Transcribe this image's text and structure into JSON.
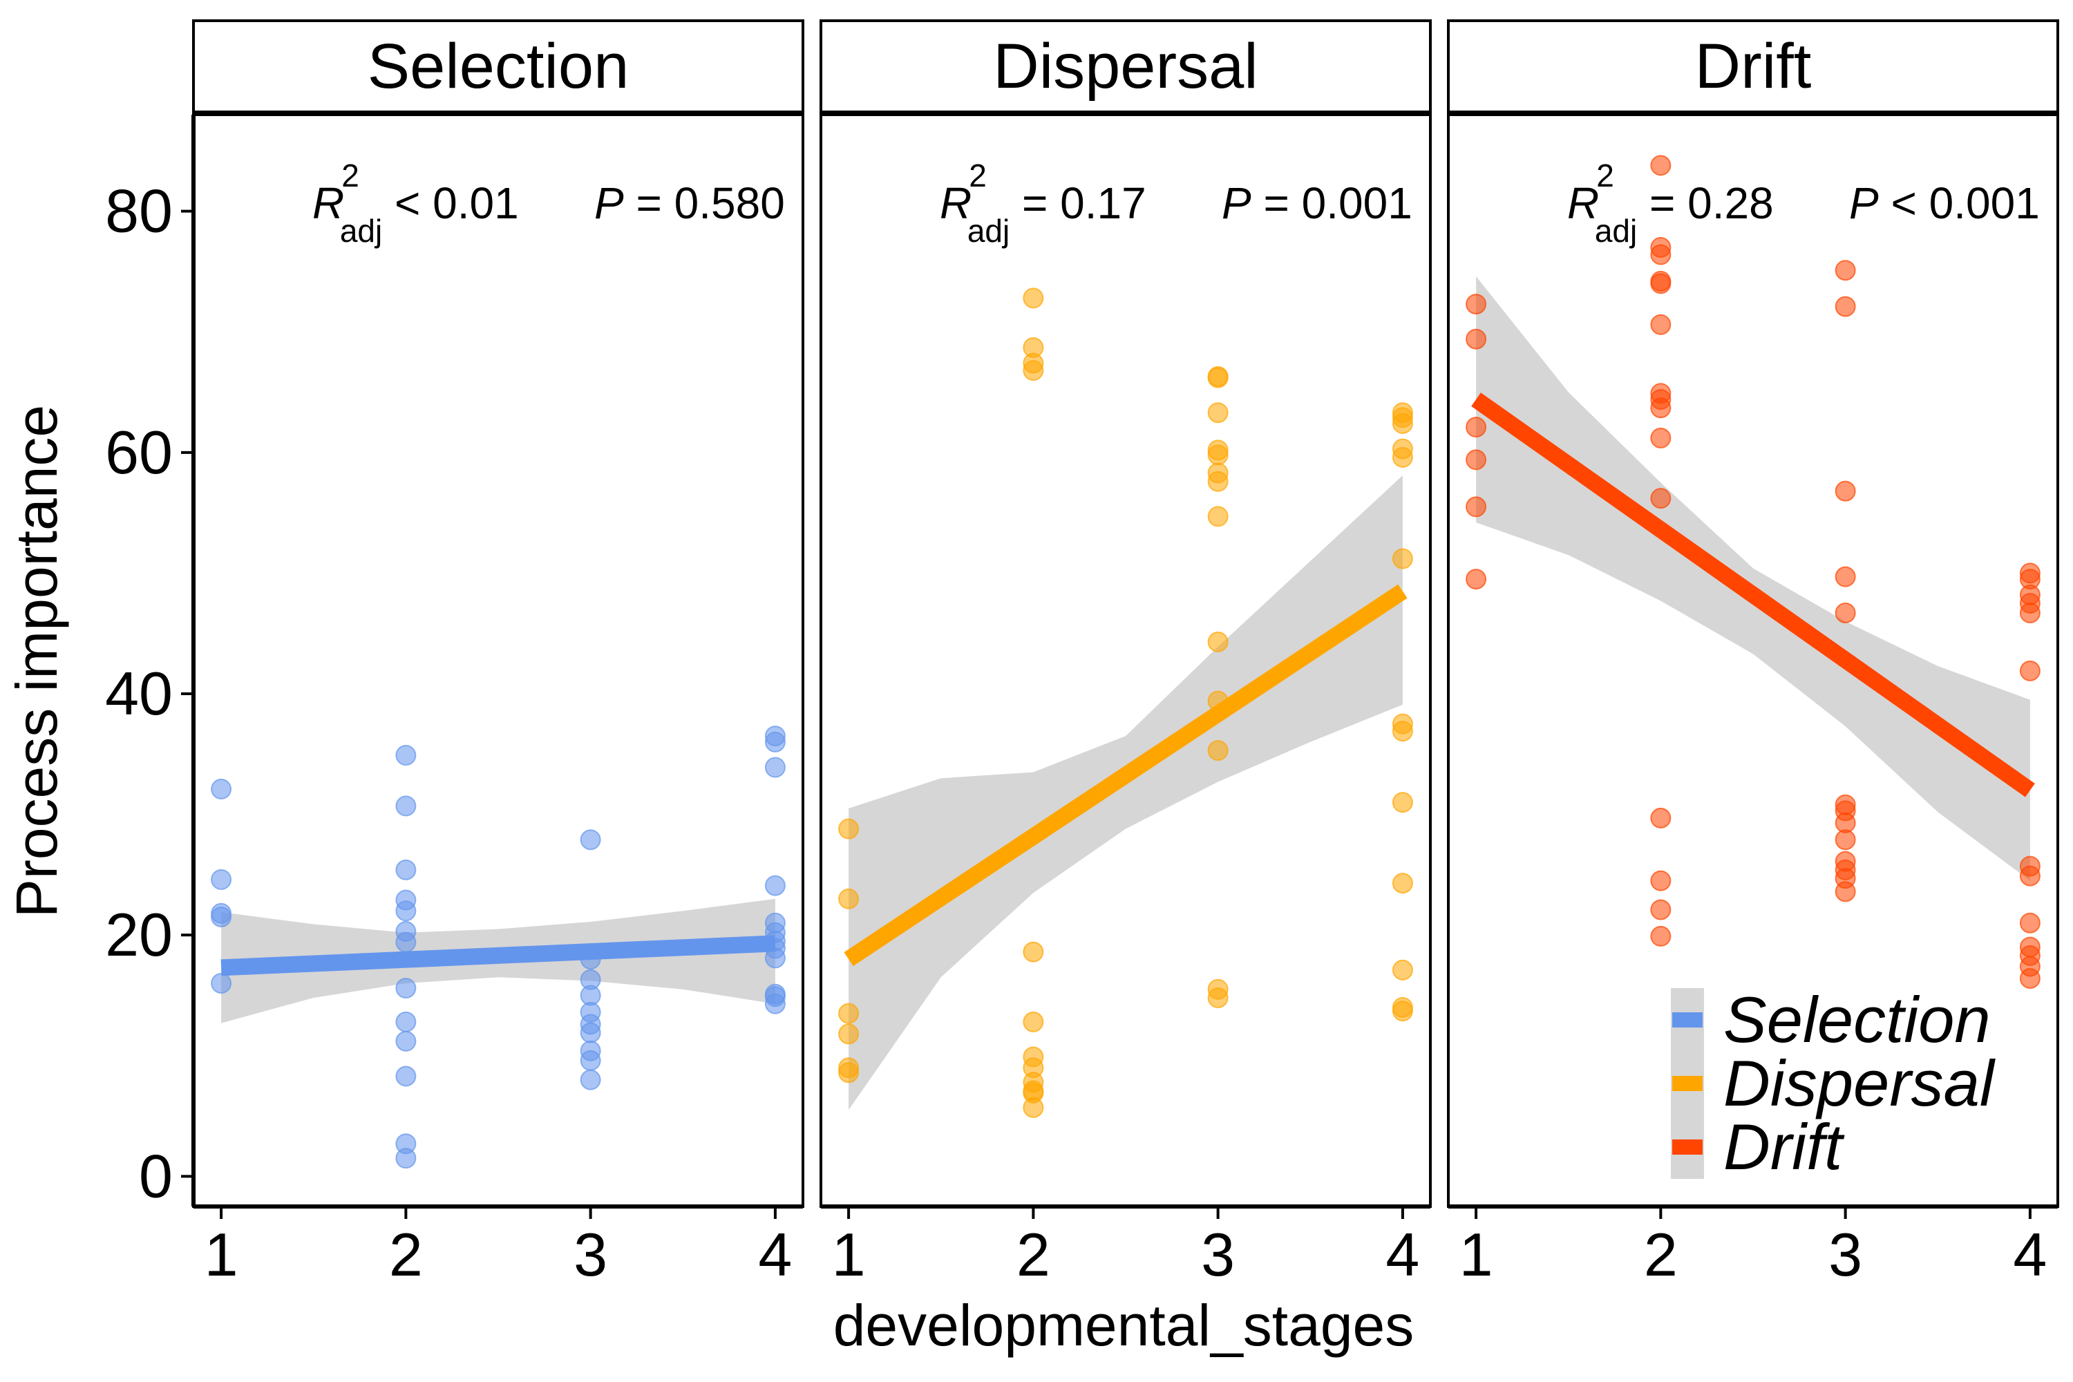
{
  "chart_data": {
    "type": "scatter",
    "y_axis_label": "Process importance",
    "x_axis_label": "developmental_stages",
    "ylim": [
      -2.5,
      88
    ],
    "xlim": [
      0.85,
      4.15
    ],
    "y_ticks": [
      0,
      20,
      40,
      60,
      80
    ],
    "x_ticks": [
      1,
      2,
      3,
      4
    ],
    "grid": false,
    "legend": {
      "placement": "bottom-right",
      "items": [
        {
          "label": "Selection",
          "color": "#6495ED"
        },
        {
          "label": "Dispersal",
          "color": "#FFA500"
        },
        {
          "label": "Drift",
          "color": "#FF4500"
        }
      ]
    },
    "panels": [
      {
        "title": "Selection",
        "color": "#6495ED",
        "stat_r_letter": "R",
        "stat_r_sub": "adj",
        "stat_r_sup": "2",
        "stat_r_value": " < 0.01",
        "stat_p_letter": "P",
        "stat_p_value": " = 0.580",
        "fit": {
          "x": [
            1,
            4
          ],
          "y": [
            17.3,
            19.3
          ]
        },
        "ci": {
          "x": [
            1,
            1.5,
            2,
            2.5,
            3,
            3.5,
            4
          ],
          "lower": [
            12.7,
            14.8,
            16.0,
            16.5,
            16.2,
            15.5,
            14.3
          ],
          "upper": [
            21.9,
            20.9,
            20.2,
            20.5,
            21.1,
            22.0,
            23.0
          ]
        },
        "points": [
          [
            1,
            32.1
          ],
          [
            1,
            24.6
          ],
          [
            1,
            21.8
          ],
          [
            1,
            21.5
          ],
          [
            1,
            16.0
          ],
          [
            2,
            34.9
          ],
          [
            2,
            30.7
          ],
          [
            2,
            25.4
          ],
          [
            2,
            22.9
          ],
          [
            2,
            22.0
          ],
          [
            2,
            20.3
          ],
          [
            2,
            19.4
          ],
          [
            2,
            15.6
          ],
          [
            2,
            12.8
          ],
          [
            2,
            11.2
          ],
          [
            2,
            8.3
          ],
          [
            2,
            2.7
          ],
          [
            2,
            1.5
          ],
          [
            3,
            27.9
          ],
          [
            3,
            18.0
          ],
          [
            3,
            16.3
          ],
          [
            3,
            15.0
          ],
          [
            3,
            13.6
          ],
          [
            3,
            12.6
          ],
          [
            3,
            11.9
          ],
          [
            3,
            10.4
          ],
          [
            3,
            9.6
          ],
          [
            3,
            8.0
          ],
          [
            4,
            36.5
          ],
          [
            4,
            36.0
          ],
          [
            4,
            33.9
          ],
          [
            4,
            24.1
          ],
          [
            4,
            21.0
          ],
          [
            4,
            20.2
          ],
          [
            4,
            19.5
          ],
          [
            4,
            18.9
          ],
          [
            4,
            18.1
          ],
          [
            4,
            15.1
          ],
          [
            4,
            14.9
          ],
          [
            4,
            14.3
          ]
        ]
      },
      {
        "title": "Dispersal",
        "color": "#FFA500",
        "stat_r_letter": "R",
        "stat_r_sub": "adj",
        "stat_r_sup": "2",
        "stat_r_value": " = 0.17",
        "stat_p_letter": "P",
        "stat_p_value": " = 0.001",
        "fit": {
          "x": [
            1,
            4
          ],
          "y": [
            18.0,
            48.5
          ]
        },
        "ci": {
          "x": [
            1,
            1.5,
            2,
            2.5,
            3,
            3.5,
            4
          ],
          "lower": [
            5.5,
            16.5,
            23.5,
            28.8,
            32.7,
            36.0,
            39.1
          ],
          "upper": [
            30.5,
            33.0,
            33.5,
            36.5,
            43.9,
            51.0,
            58.1
          ]
        },
        "points": [
          [
            1,
            28.8
          ],
          [
            1,
            23.0
          ],
          [
            1,
            13.5
          ],
          [
            1,
            11.8
          ],
          [
            1,
            9.0
          ],
          [
            1,
            8.6
          ],
          [
            2,
            72.8
          ],
          [
            2,
            68.7
          ],
          [
            2,
            67.4
          ],
          [
            2,
            66.8
          ],
          [
            2,
            18.6
          ],
          [
            2,
            12.8
          ],
          [
            2,
            9.9
          ],
          [
            2,
            9.0
          ],
          [
            2,
            7.8
          ],
          [
            2,
            7.1
          ],
          [
            2,
            6.9
          ],
          [
            2,
            5.7
          ],
          [
            3,
            66.3
          ],
          [
            3,
            66.2
          ],
          [
            3,
            63.3
          ],
          [
            3,
            60.2
          ],
          [
            3,
            59.8
          ],
          [
            3,
            58.3
          ],
          [
            3,
            57.6
          ],
          [
            3,
            54.7
          ],
          [
            3,
            44.3
          ],
          [
            3,
            39.4
          ],
          [
            3,
            35.3
          ],
          [
            3,
            15.5
          ],
          [
            3,
            14.8
          ],
          [
            4,
            63.3
          ],
          [
            4,
            62.9
          ],
          [
            4,
            62.4
          ],
          [
            4,
            60.3
          ],
          [
            4,
            59.6
          ],
          [
            4,
            51.2
          ],
          [
            4,
            37.5
          ],
          [
            4,
            36.9
          ],
          [
            4,
            31.0
          ],
          [
            4,
            24.3
          ],
          [
            4,
            17.1
          ],
          [
            4,
            14.0
          ],
          [
            4,
            13.7
          ]
        ]
      },
      {
        "title": "Drift",
        "color": "#FF4500",
        "stat_r_letter": "R",
        "stat_r_sub": "adj",
        "stat_r_sup": "2",
        "stat_r_value": " = 0.28",
        "stat_p_letter": "P",
        "stat_p_value": " < 0.001",
        "fit": {
          "x": [
            1,
            4
          ],
          "y": [
            64.4,
            32.0
          ]
        },
        "ci": {
          "x": [
            1,
            1.5,
            2,
            2.5,
            3,
            3.5,
            4
          ],
          "lower": [
            54.2,
            51.5,
            47.7,
            43.3,
            37.3,
            30.2,
            24.5
          ],
          "upper": [
            74.6,
            65.0,
            57.5,
            50.4,
            46.0,
            42.3,
            39.5
          ]
        },
        "points": [
          [
            1,
            72.3
          ],
          [
            1,
            69.4
          ],
          [
            1,
            62.1
          ],
          [
            1,
            59.4
          ],
          [
            1,
            55.5
          ],
          [
            1,
            49.5
          ],
          [
            2,
            83.8
          ],
          [
            2,
            77.0
          ],
          [
            2,
            76.4
          ],
          [
            2,
            74.2
          ],
          [
            2,
            74.0
          ],
          [
            2,
            70.6
          ],
          [
            2,
            64.9
          ],
          [
            2,
            64.4
          ],
          [
            2,
            63.7
          ],
          [
            2,
            61.2
          ],
          [
            2,
            56.2
          ],
          [
            2,
            29.7
          ],
          [
            2,
            24.5
          ],
          [
            2,
            22.1
          ],
          [
            2,
            19.9
          ],
          [
            3,
            75.1
          ],
          [
            3,
            72.1
          ],
          [
            3,
            56.8
          ],
          [
            3,
            49.7
          ],
          [
            3,
            46.7
          ],
          [
            3,
            30.8
          ],
          [
            3,
            30.3
          ],
          [
            3,
            29.3
          ],
          [
            3,
            27.9
          ],
          [
            3,
            26.1
          ],
          [
            3,
            25.4
          ],
          [
            3,
            24.7
          ],
          [
            3,
            23.6
          ],
          [
            4,
            50.0
          ],
          [
            4,
            49.5
          ],
          [
            4,
            48.2
          ],
          [
            4,
            47.5
          ],
          [
            4,
            46.7
          ],
          [
            4,
            41.9
          ],
          [
            4,
            25.7
          ],
          [
            4,
            24.9
          ],
          [
            4,
            21.0
          ],
          [
            4,
            19.0
          ],
          [
            4,
            18.3
          ],
          [
            4,
            17.4
          ],
          [
            4,
            16.4
          ]
        ]
      }
    ]
  }
}
